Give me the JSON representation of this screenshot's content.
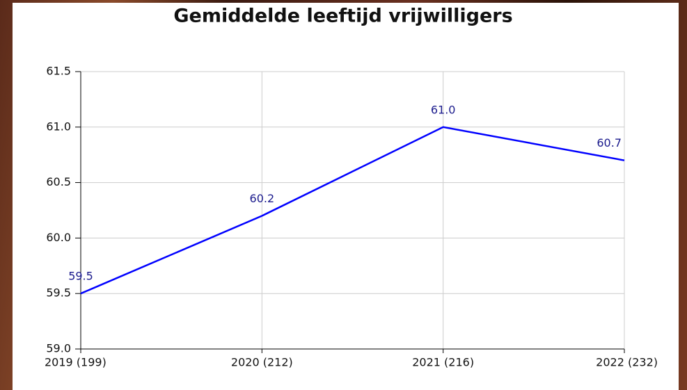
{
  "chart_data": {
    "type": "line",
    "title": "Gemiddelde leeftijd vrijwilligers",
    "categories": [
      "2019 (199)",
      "2020 (212)",
      "2021 (216)",
      "2022 (232)"
    ],
    "series": [
      {
        "color": "#0000ff",
        "values": [
          59.5,
          60.2,
          61.0,
          60.7
        ],
        "value_labels": [
          "59.5",
          "60.2",
          "61.0",
          "60.7"
        ]
      }
    ],
    "ylim": [
      59.0,
      61.5
    ],
    "yticks": [
      {
        "value": 59.0,
        "label": "59.0"
      },
      59.5,
      {
        "value": 60.0,
        "label": "60.0"
      },
      60.5,
      {
        "value": 61.0,
        "label": "61.0"
      },
      61.5
    ],
    "grid": true
  }
}
